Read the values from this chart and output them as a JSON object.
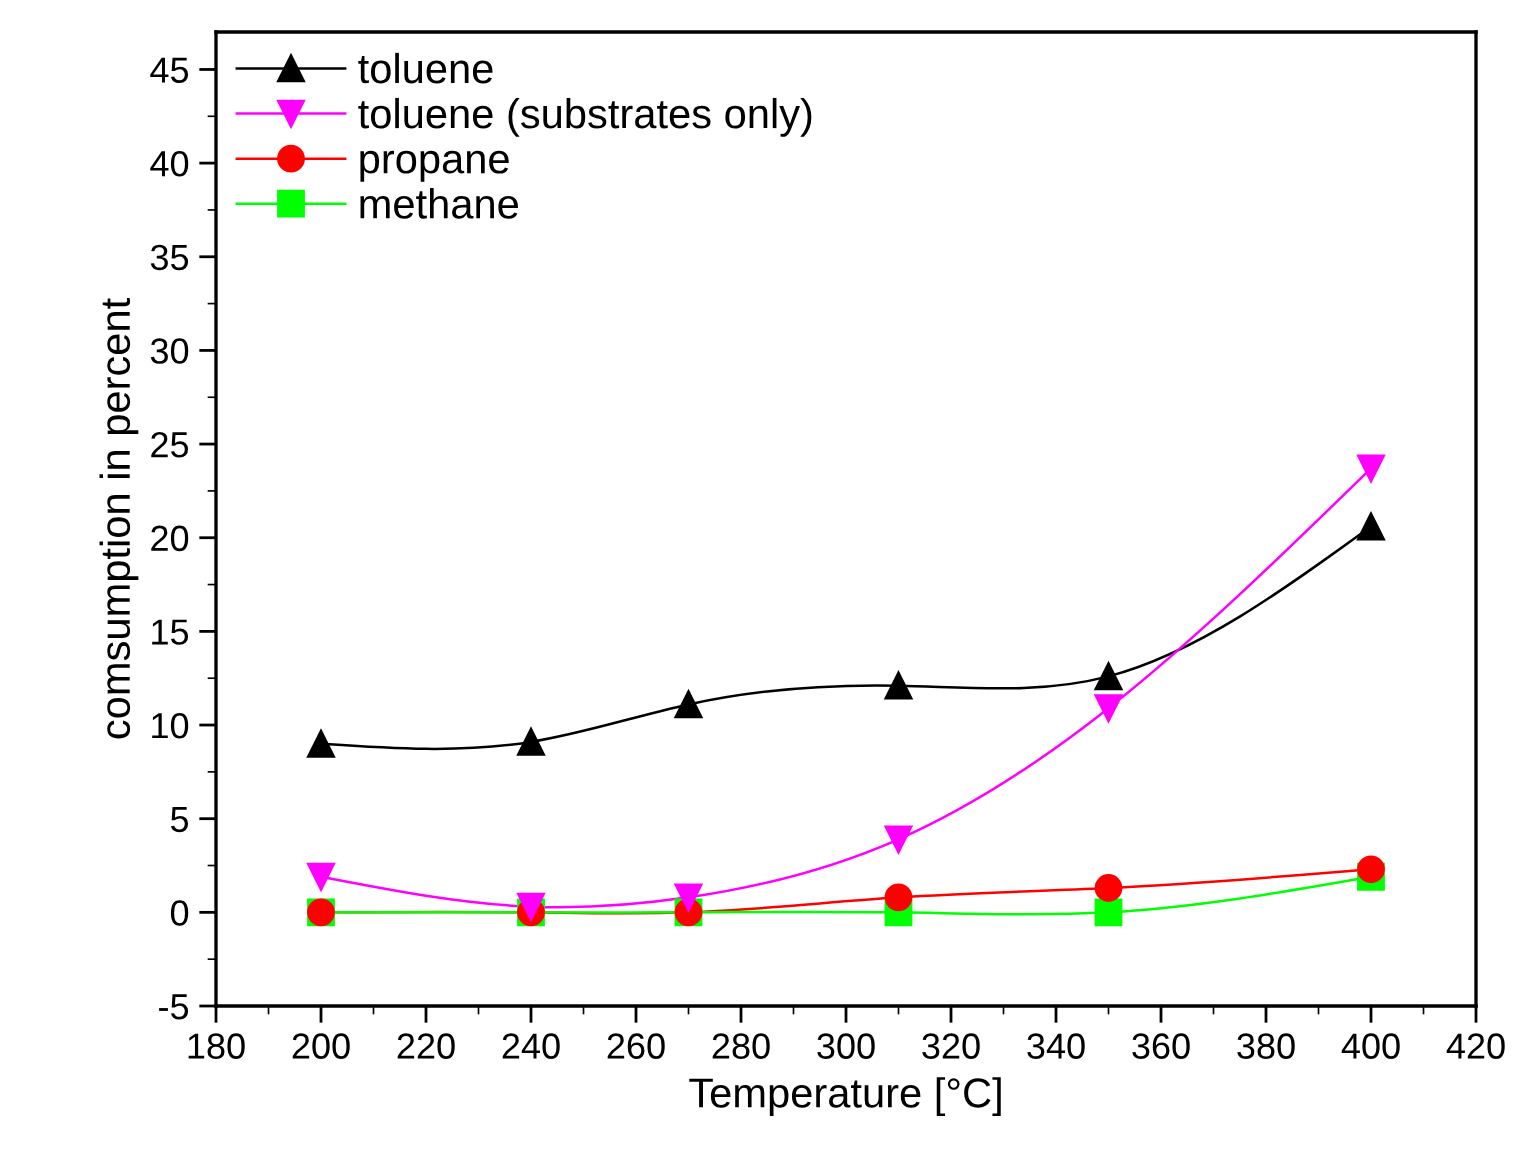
{
  "chart_data": {
    "type": "line",
    "xlabel": "Temperature [°C]",
    "ylabel": "comsumption in percent",
    "x": [
      200,
      240,
      270,
      310,
      350,
      400
    ],
    "xlim": [
      180,
      420
    ],
    "xticks": [
      180,
      200,
      220,
      240,
      260,
      280,
      300,
      320,
      340,
      360,
      380,
      400,
      420
    ],
    "ylim": [
      -5,
      47
    ],
    "yticks": [
      -5,
      0,
      5,
      10,
      15,
      20,
      25,
      30,
      35,
      40,
      45
    ],
    "grid": false,
    "legend": "top left",
    "line_style": "solid",
    "series": [
      {
        "name": "toluene",
        "color": "#000000",
        "marker": "triangle",
        "values": [
          9.0,
          9.1,
          11.1,
          12.1,
          12.6,
          20.6
        ]
      },
      {
        "name": "toluene (substrates only)",
        "color": "#ff00ff",
        "marker": "triangle_down",
        "values": [
          1.9,
          0.3,
          0.8,
          3.9,
          10.9,
          23.7
        ]
      },
      {
        "name": "propane",
        "color": "#ff0000",
        "marker": "circle",
        "values": [
          0.0,
          0.0,
          0.0,
          0.8,
          1.3,
          2.3
        ]
      },
      {
        "name": "methane",
        "color": "#00ff00",
        "marker": "square",
        "values": [
          0.0,
          0.0,
          0.0,
          0.0,
          0.0,
          1.9
        ]
      }
    ]
  }
}
